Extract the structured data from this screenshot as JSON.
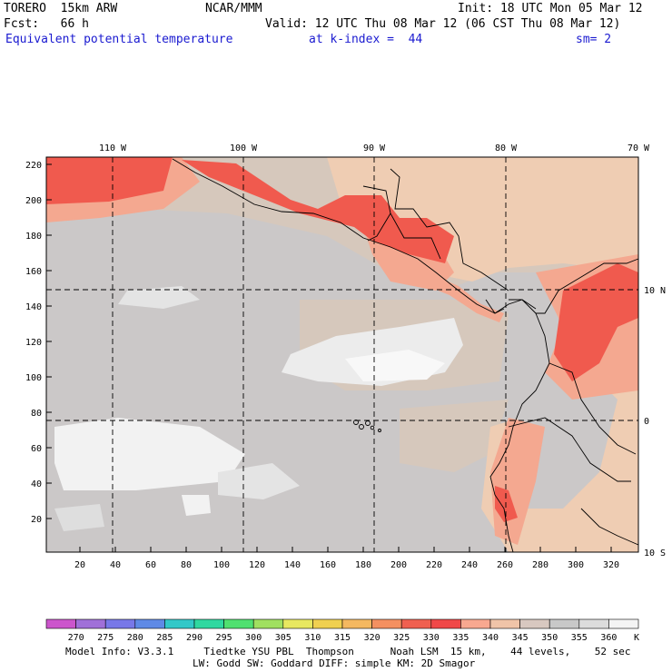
{
  "header": {
    "model": "TORERO  15km ARW",
    "org": "NCAR/MMM",
    "init": "Init: 18 UTC Mon 05 Mar 12",
    "fcst": "Fcst:   66 h",
    "valid": "Valid: 12 UTC Thu 08 Mar 12 (06 CST Thu 08 Mar 12)",
    "field": "Equivalent potential temperature",
    "level": "at k-index =  44",
    "smooth": "sm= 2"
  },
  "axes": {
    "top_lon": [
      "110 W",
      "100 W",
      "90 W",
      "80 W",
      "70 W"
    ],
    "right_lat": [
      "10 N",
      "0",
      "10 S"
    ],
    "y_ticks": [
      "220",
      "200",
      "180",
      "160",
      "140",
      "120",
      "100",
      "80",
      "60",
      "40",
      "20"
    ],
    "x_ticks": [
      "20",
      "40",
      "60",
      "80",
      "100",
      "120",
      "140",
      "160",
      "180",
      "200",
      "220",
      "240",
      "260",
      "280",
      "300",
      "320"
    ]
  },
  "colorbar": {
    "labels": [
      "270",
      "275",
      "280",
      "285",
      "290",
      "295",
      "300",
      "305",
      "310",
      "315",
      "320",
      "325",
      "330",
      "335",
      "340",
      "345",
      "350",
      "355",
      "360"
    ],
    "unit": "K",
    "colors": [
      "#cc55cc",
      "#a070d8",
      "#7878e8",
      "#5f8ae6",
      "#33c8c8",
      "#30d8a0",
      "#50e070",
      "#a0e060",
      "#e8e860",
      "#f0d050",
      "#f4b860",
      "#f49060",
      "#f06050",
      "#f04848",
      "#f8a890",
      "#f0c4a8",
      "#d8c8c0",
      "#c8c8c8",
      "#dcdcdc",
      "#f4f4f4"
    ]
  },
  "footer": {
    "line1": "Model Info: V3.3.1     Tiedtke YSU PBL  Thompson      Noah LSM  15 km,    44 levels,    52 sec",
    "line2": "LW: Godd SW: Goddard DIFF: simple KM: 2D Smagor"
  }
}
